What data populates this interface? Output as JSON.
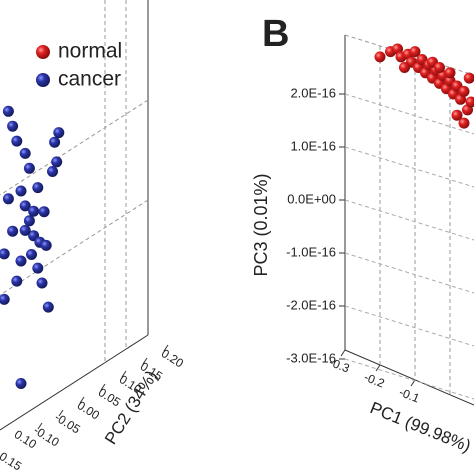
{
  "chart_data": [
    {
      "type": "scatter",
      "x_label": "PC2 (34%)",
      "xlim": [
        -0.2,
        0.2
      ],
      "ylim": [
        0,
        1
      ],
      "xticks": [
        {
          "value": 0.2,
          "label": "0.20"
        },
        {
          "value": 0.15,
          "label": "0.15"
        },
        {
          "value": 0.1,
          "label": "0.10"
        },
        {
          "value": 0.05,
          "label": "0.05"
        },
        {
          "value": 0,
          "label": "0.00"
        },
        {
          "value": -0.05,
          "label": "-0.05"
        },
        {
          "value": -0.1,
          "label": "-0.10"
        }
      ],
      "zticks": [
        {
          "value": 0.1,
          "label": "0.10"
        },
        {
          "value": 0.15,
          "label": "0.15"
        }
      ],
      "legend": "top-left",
      "series": [
        {
          "name": "normal",
          "color": "#e02020",
          "x": [],
          "y": []
        },
        {
          "name": "cancer",
          "color": "#2b35a8",
          "x": [
            -0.07,
            -0.065,
            -0.075,
            -0.06,
            -0.18,
            -0.17,
            -0.16,
            -0.15,
            -0.14,
            -0.13,
            -0.12,
            -0.125,
            -0.11,
            -0.105,
            -0.12,
            -0.14,
            -0.15,
            -0.16,
            -0.17,
            -0.18,
            -0.19,
            -0.1,
            -0.09,
            -0.095,
            -0.13,
            -0.14,
            -0.19,
            -0.085,
            -0.11,
            -0.15
          ],
          "y": [
            0.78,
            0.72,
            0.7,
            0.8,
            0.95,
            0.9,
            0.85,
            0.7,
            0.65,
            0.6,
            0.55,
            0.5,
            0.45,
            0.52,
            0.62,
            0.58,
            0.5,
            0.45,
            0.6,
            0.7,
            0.55,
            0.4,
            0.5,
            0.6,
            0.75,
            0.8,
            0.42,
            0.32,
            0.68,
            0.15
          ]
        }
      ]
    },
    {
      "type": "scatter",
      "panel_label": "B",
      "x_label": "PC1 (99.98%)",
      "y_label": "PC3 (0.01%)",
      "xlim": [
        -0.3,
        0.1
      ],
      "ylim": [
        -3e-16,
        3e-16
      ],
      "xticks": [
        -0.3,
        -0.2,
        -0.1
      ],
      "yticks": [
        {
          "value": 2e-16,
          "label": "2.0E-16"
        },
        {
          "value": 1e-16,
          "label": "1.0E-16"
        },
        {
          "value": 0,
          "label": "0.0E+00"
        },
        {
          "value": -1e-16,
          "label": "-1.0E-16"
        },
        {
          "value": -2e-16,
          "label": "-2.0E-16"
        },
        {
          "value": -3e-16,
          "label": "-3.0E-16"
        }
      ],
      "series": [
        {
          "name": "normal",
          "color": "#e02020",
          "x": [
            -0.17,
            -0.15,
            -0.14,
            -0.12,
            -0.11,
            -0.1,
            -0.09,
            -0.08,
            -0.07,
            -0.06,
            -0.05,
            -0.04,
            -0.03,
            -0.02,
            -0.01,
            0.0,
            0.01,
            0.02,
            0.03,
            0.04,
            0.05,
            0.06,
            -0.05,
            -0.03,
            0.0,
            0.02,
            0.04,
            -0.2,
            -0.13,
            0.055
          ],
          "y": [
            2.8e-16,
            2.85e-16,
            2.7e-16,
            2.75e-16,
            2.6e-16,
            2.8e-16,
            2.5e-16,
            2.65e-16,
            2.4e-16,
            2.55e-16,
            2.3e-16,
            2.45e-16,
            2.2e-16,
            2.35e-16,
            2.1e-16,
            2.25e-16,
            2e-16,
            2.15e-16,
            1.9e-16,
            2.05e-16,
            1.7e-16,
            1.85e-16,
            2.6e-16,
            2.5e-16,
            2.4e-16,
            1.6e-16,
            1.45e-16,
            2.7e-16,
            2.5e-16,
            2.3e-16
          ]
        }
      ]
    }
  ]
}
